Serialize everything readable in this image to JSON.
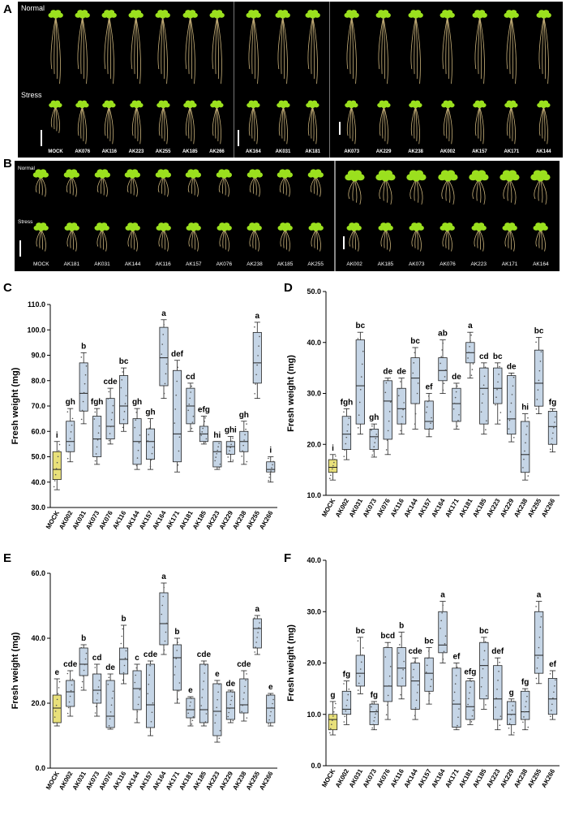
{
  "panelA": {
    "letter": "A",
    "normal_label": "Normal",
    "stress_label": "Stress",
    "groups": [
      [
        "MOCK",
        "AK076",
        "AK116",
        "AK223",
        "AK255",
        "AK185",
        "AK266"
      ],
      [
        "AK164",
        "AK031",
        "AK181"
      ],
      [
        "AK073",
        "AK229",
        "AK238",
        "AK002",
        "AK157",
        "AK171",
        "AK144"
      ]
    ]
  },
  "panelB": {
    "letter": "B",
    "normal_label": "Normal",
    "stress_label": "Stress",
    "groups": [
      [
        "MOCK",
        "AK181",
        "AK031",
        "AK144",
        "AK116",
        "AK157",
        "AK076",
        "AK238",
        "AK185",
        "AK255"
      ],
      [
        "AK002",
        "AK185",
        "AK073",
        "AK076",
        "AK223",
        "AK171",
        "AK164"
      ]
    ]
  },
  "colors": {
    "mock_box": "#e8e07a",
    "box": "#c5d5e6",
    "whisker": "#222222",
    "leaf": "#9be01e",
    "root": "#c9b27a"
  },
  "chart_data": [
    {
      "panel": "C",
      "type": "box",
      "ylabel": "Fresh weight (mg)",
      "ylim": [
        30,
        110
      ],
      "yticks": [
        "30.0",
        "40.0",
        "50.0",
        "60.0",
        "70.0",
        "80.0",
        "90.0",
        "100.0",
        "110.0"
      ],
      "yticks_values": [
        30,
        40,
        50,
        60,
        70,
        80,
        90,
        100,
        110
      ],
      "categories": [
        "MOCK",
        "AK002",
        "AK031",
        "AK073",
        "AK076",
        "AK116",
        "AK144",
        "AK157",
        "AK164",
        "AK171",
        "AK181",
        "AK185",
        "AK223",
        "AK229",
        "AK238",
        "AK255",
        "AK266"
      ],
      "boxes": [
        {
          "min": 37,
          "q1": 41,
          "median": 45,
          "q3": 52,
          "max": 56,
          "letter": "i"
        },
        {
          "min": 48,
          "q1": 52,
          "median": 56,
          "q3": 64,
          "max": 69,
          "letter": "gh"
        },
        {
          "min": 63,
          "q1": 68,
          "median": 75,
          "q3": 87,
          "max": 91,
          "letter": "b"
        },
        {
          "min": 47,
          "q1": 50,
          "median": 57,
          "q3": 66,
          "max": 69,
          "letter": "fgh"
        },
        {
          "min": 55,
          "q1": 57,
          "median": 62,
          "q3": 73,
          "max": 77,
          "letter": "cde"
        },
        {
          "min": 60,
          "q1": 63,
          "median": 70,
          "q3": 82,
          "max": 85,
          "letter": "bc"
        },
        {
          "min": 45,
          "q1": 47,
          "median": 56,
          "q3": 65,
          "max": 69,
          "letter": "gh"
        },
        {
          "min": 45,
          "q1": 49,
          "median": 56,
          "q3": 61,
          "max": 65,
          "letter": "gh"
        },
        {
          "min": 73,
          "q1": 78,
          "median": 89,
          "q3": 101,
          "max": 104,
          "letter": "a"
        },
        {
          "min": 44,
          "q1": 48,
          "median": 59,
          "q3": 84,
          "max": 88,
          "letter": "def"
        },
        {
          "min": 60,
          "q1": 63,
          "median": 70,
          "q3": 77,
          "max": 79,
          "letter": "cd"
        },
        {
          "min": 55,
          "q1": 56,
          "median": 59,
          "q3": 62,
          "max": 66,
          "letter": "efg"
        },
        {
          "min": 45,
          "q1": 46,
          "median": 52,
          "q3": 56,
          "max": 56,
          "letter": "hi"
        },
        {
          "min": 48,
          "q1": 51,
          "median": 54,
          "q3": 56,
          "max": 58,
          "letter": "ghi"
        },
        {
          "min": 47,
          "q1": 52,
          "median": 56,
          "q3": 60,
          "max": 64,
          "letter": "gh"
        },
        {
          "min": 73,
          "q1": 79,
          "median": 87,
          "q3": 99,
          "max": 103,
          "letter": "a"
        },
        {
          "min": 40,
          "q1": 44,
          "median": 45,
          "q3": 48,
          "max": 50,
          "letter": "i"
        }
      ]
    },
    {
      "panel": "D",
      "type": "box",
      "ylabel": "Fresh weight (mg)",
      "ylim": [
        10,
        50
      ],
      "yticks": [
        "10.0",
        "20.0",
        "30.0",
        "40.0",
        "50.0"
      ],
      "yticks_values": [
        10,
        20,
        30,
        40,
        50
      ],
      "categories": [
        "MOCK",
        "AK002",
        "AK031",
        "AK073",
        "AK076",
        "AK116",
        "AK144",
        "AK157",
        "AK164",
        "AK171",
        "AK181",
        "AK185",
        "AK223",
        "AK229",
        "AK238",
        "AK255",
        "AK266"
      ],
      "boxes": [
        {
          "min": 13,
          "q1": 14.5,
          "median": 15.5,
          "q3": 17,
          "max": 18,
          "letter": "i"
        },
        {
          "min": 17,
          "q1": 19,
          "median": 22,
          "q3": 25.5,
          "max": 27,
          "letter": "fgh"
        },
        {
          "min": 22,
          "q1": 24,
          "median": 31.5,
          "q3": 40.5,
          "max": 42,
          "letter": "bc"
        },
        {
          "min": 17.5,
          "q1": 19,
          "median": 21.5,
          "q3": 23,
          "max": 24,
          "letter": "gh"
        },
        {
          "min": 18,
          "q1": 21,
          "median": 28.5,
          "q3": 32.5,
          "max": 33,
          "letter": "de"
        },
        {
          "min": 22,
          "q1": 24,
          "median": 27,
          "q3": 31,
          "max": 33,
          "letter": "de"
        },
        {
          "min": 23,
          "q1": 28,
          "median": 33,
          "q3": 37,
          "max": 39,
          "letter": "bc"
        },
        {
          "min": 21.5,
          "q1": 23,
          "median": 24.5,
          "q3": 28.5,
          "max": 30,
          "letter": "ef"
        },
        {
          "min": 30,
          "q1": 32.5,
          "median": 34.5,
          "q3": 37,
          "max": 40.5,
          "letter": "ab"
        },
        {
          "min": 23,
          "q1": 24.5,
          "median": 28,
          "q3": 31,
          "max": 32,
          "letter": "de"
        },
        {
          "min": 33,
          "q1": 36,
          "median": 38,
          "q3": 40,
          "max": 42,
          "letter": "a"
        },
        {
          "min": 22,
          "q1": 24,
          "median": 31,
          "q3": 35,
          "max": 36,
          "letter": "cd"
        },
        {
          "min": 24,
          "q1": 28,
          "median": 31,
          "q3": 35,
          "max": 36,
          "letter": "bc"
        },
        {
          "min": 20.5,
          "q1": 22,
          "median": 25,
          "q3": 33.5,
          "max": 34,
          "letter": "de"
        },
        {
          "min": 13,
          "q1": 14.5,
          "median": 18,
          "q3": 24.5,
          "max": 26,
          "letter": "hi"
        },
        {
          "min": 26,
          "q1": 27.5,
          "median": 32,
          "q3": 38.5,
          "max": 41,
          "letter": "bc"
        },
        {
          "min": 18.5,
          "q1": 20,
          "median": 23.5,
          "q3": 26.5,
          "max": 27,
          "letter": "fg"
        }
      ]
    },
    {
      "panel": "E",
      "type": "box",
      "ylabel": "Fresh weight (mg)",
      "ylim": [
        0,
        60
      ],
      "yticks": [
        "0.0",
        "20.0",
        "40.0",
        "60.0"
      ],
      "yticks_values": [
        0,
        20,
        40,
        60
      ],
      "categories": [
        "MOCK",
        "AK002",
        "AK031",
        "AK073",
        "AK076",
        "AK116",
        "AK144",
        "AK157",
        "AK164",
        "AK171",
        "AK181",
        "AK185",
        "AK223",
        "AK229",
        "AK238",
        "AK255",
        "AK266"
      ],
      "boxes": [
        {
          "min": 13,
          "q1": 14,
          "median": 18.5,
          "q3": 22.5,
          "max": 27.5,
          "letter": "e"
        },
        {
          "min": 16,
          "q1": 19,
          "median": 23.5,
          "q3": 27,
          "max": 30,
          "letter": "cde"
        },
        {
          "min": 24,
          "q1": 28.5,
          "median": 32,
          "q3": 37,
          "max": 38,
          "letter": "b"
        },
        {
          "min": 16,
          "q1": 20,
          "median": 24,
          "q3": 29,
          "max": 32,
          "letter": "cd"
        },
        {
          "min": 12,
          "q1": 12.5,
          "median": 16,
          "q3": 27,
          "max": 29,
          "letter": "de"
        },
        {
          "min": 26,
          "q1": 29,
          "median": 33.5,
          "q3": 37,
          "max": 44,
          "letter": "b"
        },
        {
          "min": 14,
          "q1": 18,
          "median": 24.5,
          "q3": 30,
          "max": 32,
          "letter": "c"
        },
        {
          "min": 10,
          "q1": 12.5,
          "median": 19.5,
          "q3": 32,
          "max": 33,
          "letter": "cde"
        },
        {
          "min": 35,
          "q1": 38,
          "median": 44.5,
          "q3": 54,
          "max": 57,
          "letter": "a"
        },
        {
          "min": 20,
          "q1": 24,
          "median": 34,
          "q3": 38,
          "max": 40,
          "letter": "b"
        },
        {
          "min": 13,
          "q1": 15.5,
          "median": 18,
          "q3": 21.5,
          "max": 22,
          "letter": "e"
        },
        {
          "min": 13,
          "q1": 14,
          "median": 18,
          "q3": 32,
          "max": 33,
          "letter": "cde"
        },
        {
          "min": 8,
          "q1": 10,
          "median": 17.5,
          "q3": 26,
          "max": 27,
          "letter": "e"
        },
        {
          "min": 14,
          "q1": 15,
          "median": 18.5,
          "q3": 23.5,
          "max": 24,
          "letter": "de"
        },
        {
          "min": 14.5,
          "q1": 17,
          "median": 19.5,
          "q3": 27.5,
          "max": 30,
          "letter": "cde"
        },
        {
          "min": 35,
          "q1": 37,
          "median": 43,
          "q3": 46,
          "max": 47,
          "letter": "a"
        },
        {
          "min": 13,
          "q1": 14,
          "median": 18.5,
          "q3": 22.5,
          "max": 23,
          "letter": "e"
        }
      ]
    },
    {
      "panel": "F",
      "type": "box",
      "ylabel": "Fresh weight (mg)",
      "ylim": [
        0,
        40
      ],
      "yticks": [
        "0.0",
        "10.0",
        "20.0",
        "30.0",
        "40.0"
      ],
      "yticks_values": [
        0,
        10,
        20,
        30,
        40
      ],
      "categories": [
        "MOCK",
        "AK002",
        "AK031",
        "AK073",
        "AK076",
        "AK116",
        "AK144",
        "AK157",
        "AK164",
        "AK171",
        "AK181",
        "AK185",
        "AK223",
        "AK229",
        "AK238",
        "AK255",
        "AK266"
      ],
      "boxes": [
        {
          "min": 6,
          "q1": 7,
          "median": 9,
          "q3": 10,
          "max": 12.5,
          "letter": "g"
        },
        {
          "min": 8,
          "q1": 10,
          "median": 11,
          "q3": 14.5,
          "max": 16.5,
          "letter": "fg"
        },
        {
          "min": 14,
          "q1": 15.5,
          "median": 18,
          "q3": 21.5,
          "max": 25,
          "letter": "bc"
        },
        {
          "min": 7,
          "q1": 8,
          "median": 10.5,
          "q3": 12,
          "max": 12.5,
          "letter": "fg"
        },
        {
          "min": 9,
          "q1": 12.5,
          "median": 15.5,
          "q3": 23,
          "max": 24,
          "letter": "bcd"
        },
        {
          "min": 13,
          "q1": 15.5,
          "median": 19,
          "q3": 23,
          "max": 26,
          "letter": "b"
        },
        {
          "min": 9,
          "q1": 11,
          "median": 16.5,
          "q3": 20,
          "max": 21,
          "letter": "cde"
        },
        {
          "min": 12,
          "q1": 14.5,
          "median": 18,
          "q3": 21,
          "max": 23,
          "letter": "bc"
        },
        {
          "min": 20,
          "q1": 22,
          "median": 23.5,
          "q3": 30,
          "max": 32,
          "letter": "a"
        },
        {
          "min": 7,
          "q1": 7.5,
          "median": 12,
          "q3": 19,
          "max": 20,
          "letter": "ef"
        },
        {
          "min": 8,
          "q1": 9,
          "median": 11.5,
          "q3": 16.5,
          "max": 17,
          "letter": "efg"
        },
        {
          "min": 11,
          "q1": 13,
          "median": 19.5,
          "q3": 24,
          "max": 25,
          "letter": "bc"
        },
        {
          "min": 7,
          "q1": 9,
          "median": 13,
          "q3": 19.5,
          "max": 21,
          "letter": "def"
        },
        {
          "min": 6,
          "q1": 8,
          "median": 10,
          "q3": 12.5,
          "max": 13,
          "letter": "g"
        },
        {
          "min": 7,
          "q1": 9,
          "median": 10.5,
          "q3": 14.5,
          "max": 15,
          "letter": "fg"
        },
        {
          "min": 16,
          "q1": 18,
          "median": 21.5,
          "q3": 30,
          "max": 32,
          "letter": "a"
        },
        {
          "min": 9,
          "q1": 10,
          "median": 13,
          "q3": 17,
          "max": 18.5,
          "letter": "ef"
        }
      ]
    }
  ]
}
